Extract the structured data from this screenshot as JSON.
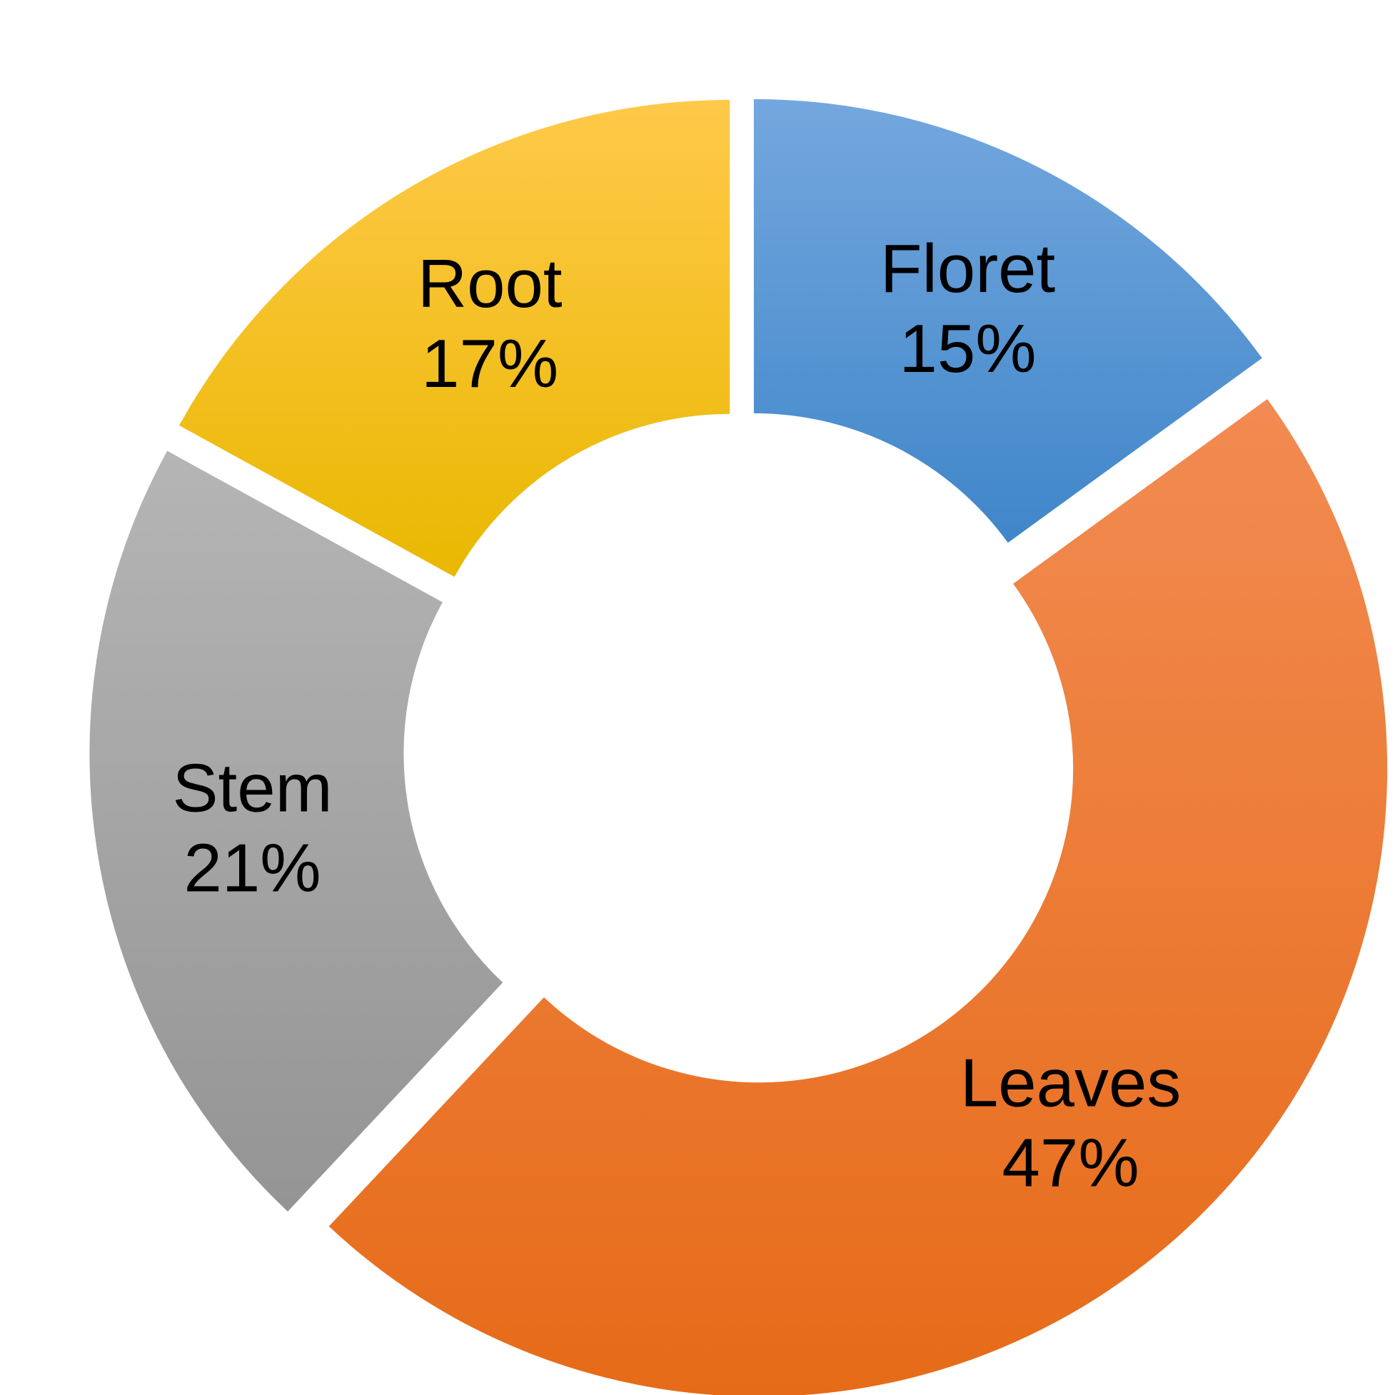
{
  "chart_data": {
    "type": "donut",
    "title": "",
    "slices": [
      {
        "name": "Floret",
        "value": 15,
        "label": "15%",
        "color_top": "#74a7de",
        "color_bottom": "#3f86c9"
      },
      {
        "name": "Leaves",
        "value": 47,
        "label": "47%",
        "color_top": "#f28b52",
        "color_bottom": "#e66b18"
      },
      {
        "name": "Stem",
        "value": 21,
        "label": "21%",
        "color_top": "#b5b5b5",
        "color_bottom": "#949494"
      },
      {
        "name": "Root",
        "value": 17,
        "label": "17%",
        "color_top": "#ffc94a",
        "color_bottom": "#e9b800"
      }
    ],
    "start_angle_deg": 0,
    "direction": "clockwise",
    "exploded": true,
    "legend": "none",
    "data_labels": "category name and percentage"
  }
}
